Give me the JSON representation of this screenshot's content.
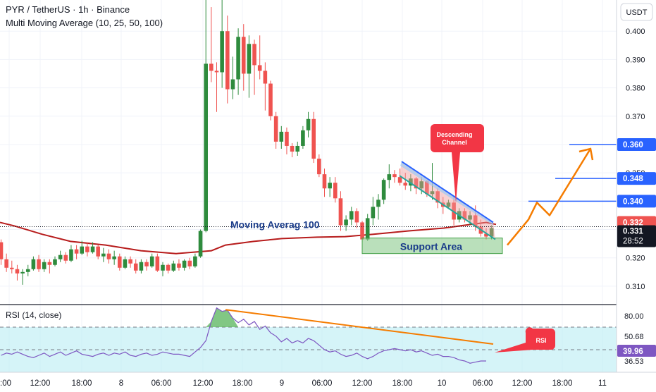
{
  "header": {
    "symbol_line": "PYR / TetherUS · 1h · Binance",
    "indicator_line": "Multi Moving Average (10, 25, 50, 100)",
    "currency": "USDT"
  },
  "rsi_panel": {
    "label": "RSI (14, close)",
    "axis_labels": [
      "80.00",
      "50.68",
      "36.53"
    ],
    "current_value": "39.96",
    "bubble": "RSI"
  },
  "annotations": {
    "ma_label": "Moving Averag 100",
    "support_label": "Support Area",
    "channel_label_1": "Descending",
    "channel_label_2": "Channel"
  },
  "price_labels": {
    "target1": "0.340",
    "target2": "0.348",
    "target3": "0.360",
    "ma_value": "0.332",
    "last": "0.331",
    "countdown": "28:52"
  },
  "colors": {
    "up": "#26a69a",
    "up_body": "#2e8b3d",
    "down": "#ef5350",
    "ma": "#b71c1c",
    "target": "#2962ff",
    "arrow": "#f57c00",
    "channel": "#2962ff",
    "support_fill": "#81c784",
    "callout": "#f23645"
  },
  "chart_data": [
    {
      "type": "candlestick",
      "title": "PYR / TetherUS · 1h · Binance",
      "y_ticks": [
        "0.400",
        "0.390",
        "0.380",
        "0.370",
        "0.350",
        "0.320",
        "0.310"
      ],
      "x_ticks": [
        ":00",
        "12:00",
        "18:00",
        "8",
        "06:00",
        "12:00",
        "18:00",
        "9",
        "06:00",
        "12:00",
        "18:00",
        "10",
        "06:00",
        "12:00",
        "18:00",
        "11"
      ],
      "ylim": [
        0.3035,
        0.411
      ],
      "candles": [
        [
          0.3255,
          0.3265,
          0.3175,
          0.3195
        ],
        [
          0.3195,
          0.3215,
          0.315,
          0.3165
        ],
        [
          0.3165,
          0.319,
          0.3145,
          0.316
        ],
        [
          0.316,
          0.3175,
          0.312,
          0.3145
        ],
        [
          0.3145,
          0.316,
          0.3105,
          0.315
        ],
        [
          0.315,
          0.3175,
          0.3135,
          0.316
        ],
        [
          0.316,
          0.3205,
          0.3155,
          0.3195
        ],
        [
          0.3195,
          0.321,
          0.315,
          0.316
        ],
        [
          0.316,
          0.3195,
          0.315,
          0.3185
        ],
        [
          0.3185,
          0.3195,
          0.3145,
          0.3175
        ],
        [
          0.3175,
          0.3205,
          0.317,
          0.3195
        ],
        [
          0.3195,
          0.3225,
          0.3185,
          0.321
        ],
        [
          0.321,
          0.322,
          0.318,
          0.319
        ],
        [
          0.319,
          0.3245,
          0.3185,
          0.323
        ],
        [
          0.323,
          0.3245,
          0.3195,
          0.3215
        ],
        [
          0.3215,
          0.326,
          0.321,
          0.324
        ],
        [
          0.324,
          0.3255,
          0.3205,
          0.322
        ],
        [
          0.322,
          0.3255,
          0.3215,
          0.324
        ],
        [
          0.324,
          0.3245,
          0.3195,
          0.3205
        ],
        [
          0.3205,
          0.3235,
          0.3185,
          0.3215
        ],
        [
          0.3215,
          0.323,
          0.318,
          0.3195
        ],
        [
          0.3195,
          0.3225,
          0.3175,
          0.3205
        ],
        [
          0.3205,
          0.3215,
          0.3155,
          0.3165
        ],
        [
          0.3165,
          0.3205,
          0.316,
          0.3195
        ],
        [
          0.3195,
          0.3205,
          0.3165,
          0.318
        ],
        [
          0.318,
          0.3195,
          0.3145,
          0.3155
        ],
        [
          0.3155,
          0.3195,
          0.3145,
          0.3185
        ],
        [
          0.3185,
          0.3195,
          0.3155,
          0.317
        ],
        [
          0.317,
          0.3215,
          0.3165,
          0.3205
        ],
        [
          0.3205,
          0.3215,
          0.315,
          0.3155
        ],
        [
          0.3155,
          0.3185,
          0.3135,
          0.3175
        ],
        [
          0.3175,
          0.318,
          0.3145,
          0.3155
        ],
        [
          0.3155,
          0.319,
          0.315,
          0.318
        ],
        [
          0.318,
          0.3195,
          0.3155,
          0.3165
        ],
        [
          0.3165,
          0.3195,
          0.3155,
          0.319
        ],
        [
          0.319,
          0.32,
          0.316,
          0.317
        ],
        [
          0.317,
          0.3215,
          0.3165,
          0.3205
        ],
        [
          0.3205,
          0.33,
          0.32,
          0.3295
        ],
        [
          0.3295,
          0.411,
          0.329,
          0.3885
        ],
        [
          0.3885,
          0.4085,
          0.382,
          0.386
        ],
        [
          0.386,
          0.389,
          0.3715,
          0.3855
        ],
        [
          0.3855,
          0.411,
          0.38,
          0.4
        ],
        [
          0.4,
          0.4055,
          0.3745,
          0.3795
        ],
        [
          0.3795,
          0.391,
          0.376,
          0.383
        ],
        [
          0.383,
          0.401,
          0.3775,
          0.398
        ],
        [
          0.398,
          0.4025,
          0.379,
          0.385
        ],
        [
          0.385,
          0.3985,
          0.3765,
          0.3955
        ],
        [
          0.3955,
          0.397,
          0.3775,
          0.388
        ],
        [
          0.388,
          0.3985,
          0.383,
          0.386
        ],
        [
          0.386,
          0.389,
          0.372,
          0.3815
        ],
        [
          0.3815,
          0.3825,
          0.3685,
          0.37
        ],
        [
          0.37,
          0.3715,
          0.3585,
          0.361
        ],
        [
          0.361,
          0.3665,
          0.3585,
          0.3645
        ],
        [
          0.3645,
          0.366,
          0.3565,
          0.3595
        ],
        [
          0.3595,
          0.3605,
          0.3555,
          0.3575
        ],
        [
          0.3575,
          0.361,
          0.356,
          0.3595
        ],
        [
          0.3595,
          0.3665,
          0.3585,
          0.365
        ],
        [
          0.365,
          0.3715,
          0.3625,
          0.369
        ],
        [
          0.369,
          0.3715,
          0.3535,
          0.355
        ],
        [
          0.355,
          0.3565,
          0.3485,
          0.3495
        ],
        [
          0.3495,
          0.3515,
          0.3415,
          0.3445
        ],
        [
          0.3445,
          0.3485,
          0.3415,
          0.3465
        ],
        [
          0.3465,
          0.3485,
          0.3395,
          0.341
        ],
        [
          0.341,
          0.3435,
          0.3295,
          0.3315
        ],
        [
          0.3315,
          0.335,
          0.3295,
          0.3335
        ],
        [
          0.3335,
          0.338,
          0.3315,
          0.3365
        ],
        [
          0.3365,
          0.3375,
          0.3305,
          0.3325
        ],
        [
          0.3325,
          0.333,
          0.3255,
          0.3265
        ],
        [
          0.3265,
          0.3355,
          0.326,
          0.334
        ],
        [
          0.334,
          0.3415,
          0.3315,
          0.338
        ],
        [
          0.338,
          0.3425,
          0.3335,
          0.3405
        ],
        [
          0.3405,
          0.348,
          0.339,
          0.3475
        ],
        [
          0.3475,
          0.353,
          0.3445,
          0.3495
        ],
        [
          0.3495,
          0.351,
          0.3465,
          0.3485
        ],
        [
          0.3485,
          0.3515,
          0.3455,
          0.3465
        ],
        [
          0.3465,
          0.35,
          0.344,
          0.3455
        ],
        [
          0.3455,
          0.3495,
          0.3435,
          0.348
        ],
        [
          0.348,
          0.3485,
          0.3425,
          0.3445
        ],
        [
          0.3445,
          0.3485,
          0.3425,
          0.347
        ],
        [
          0.347,
          0.3475,
          0.3415,
          0.3425
        ],
        [
          0.3425,
          0.3535,
          0.3405,
          0.3435
        ],
        [
          0.3435,
          0.3445,
          0.3375,
          0.3395
        ],
        [
          0.3395,
          0.3415,
          0.3355,
          0.338
        ],
        [
          0.338,
          0.3405,
          0.3375,
          0.3395
        ],
        [
          0.3395,
          0.3415,
          0.3315,
          0.3335
        ],
        [
          0.3335,
          0.3375,
          0.3325,
          0.3365
        ],
        [
          0.3365,
          0.3375,
          0.3325,
          0.3335
        ],
        [
          0.3335,
          0.3365,
          0.3315,
          0.335
        ],
        [
          0.335,
          0.3385,
          0.3295,
          0.331
        ],
        [
          0.331,
          0.3335,
          0.3275,
          0.3285
        ],
        [
          0.3285,
          0.3305,
          0.3265,
          0.3275
        ],
        [
          0.3275,
          0.3315,
          0.3265,
          0.3305
        ]
      ],
      "ma100": [
        [
          0,
          0.3325
        ],
        [
          20,
          0.3313
        ],
        [
          60,
          0.3283
        ],
        [
          100,
          0.3258
        ],
        [
          150,
          0.3245
        ],
        [
          200,
          0.3225
        ],
        [
          250,
          0.3215
        ],
        [
          300,
          0.3225
        ],
        [
          320,
          0.3245
        ],
        [
          360,
          0.3258
        ],
        [
          400,
          0.3268
        ],
        [
          450,
          0.3273
        ],
        [
          490,
          0.3275
        ],
        [
          530,
          0.3283
        ],
        [
          580,
          0.3295
        ],
        [
          630,
          0.3305
        ],
        [
          665,
          0.3317
        ],
        [
          690,
          0.3325
        ],
        [
          704,
          0.3318
        ]
      ],
      "levels": [
        0.36,
        0.348,
        0.34,
        0.332,
        0.331
      ],
      "support_zone": [
        0.3215,
        0.327
      ],
      "channel_upper": [
        [
          570,
          0.354
        ],
        [
          700,
          0.3325
        ]
      ],
      "channel_lower": [
        [
          567,
          0.349
        ],
        [
          703,
          0.3265
        ]
      ],
      "projection": [
        [
          720,
          0.3245
        ],
        [
          750,
          0.3335
        ],
        [
          762,
          0.3395
        ],
        [
          780,
          0.335
        ],
        [
          838,
          0.3585
        ]
      ]
    },
    {
      "type": "line",
      "title": "RSI (14, close)",
      "ylim": [
        30,
        90
      ],
      "bands": [
        70,
        50,
        30
      ],
      "values": [
        45,
        47,
        46,
        48,
        46,
        44,
        43,
        45,
        47,
        44,
        46,
        48,
        45,
        47,
        49,
        46,
        45,
        44,
        46,
        47,
        45,
        47,
        46,
        48,
        45,
        44,
        46,
        47,
        45,
        46,
        48,
        47,
        46,
        46,
        45,
        44,
        48,
        52,
        58,
        75,
        87,
        84,
        85,
        78,
        74,
        77,
        72,
        75,
        68,
        71,
        65,
        62,
        57,
        60,
        56,
        58,
        56,
        60,
        58,
        54,
        50,
        48,
        49,
        46,
        44,
        45,
        47,
        44,
        42,
        44,
        47,
        49,
        50,
        51,
        50,
        49,
        50,
        48,
        49,
        47,
        45,
        46,
        44,
        44,
        43,
        41,
        40,
        38,
        39,
        40,
        40
      ],
      "divergence": [
        [
          320,
          85.5
        ],
        [
          700,
          55
        ]
      ]
    }
  ]
}
